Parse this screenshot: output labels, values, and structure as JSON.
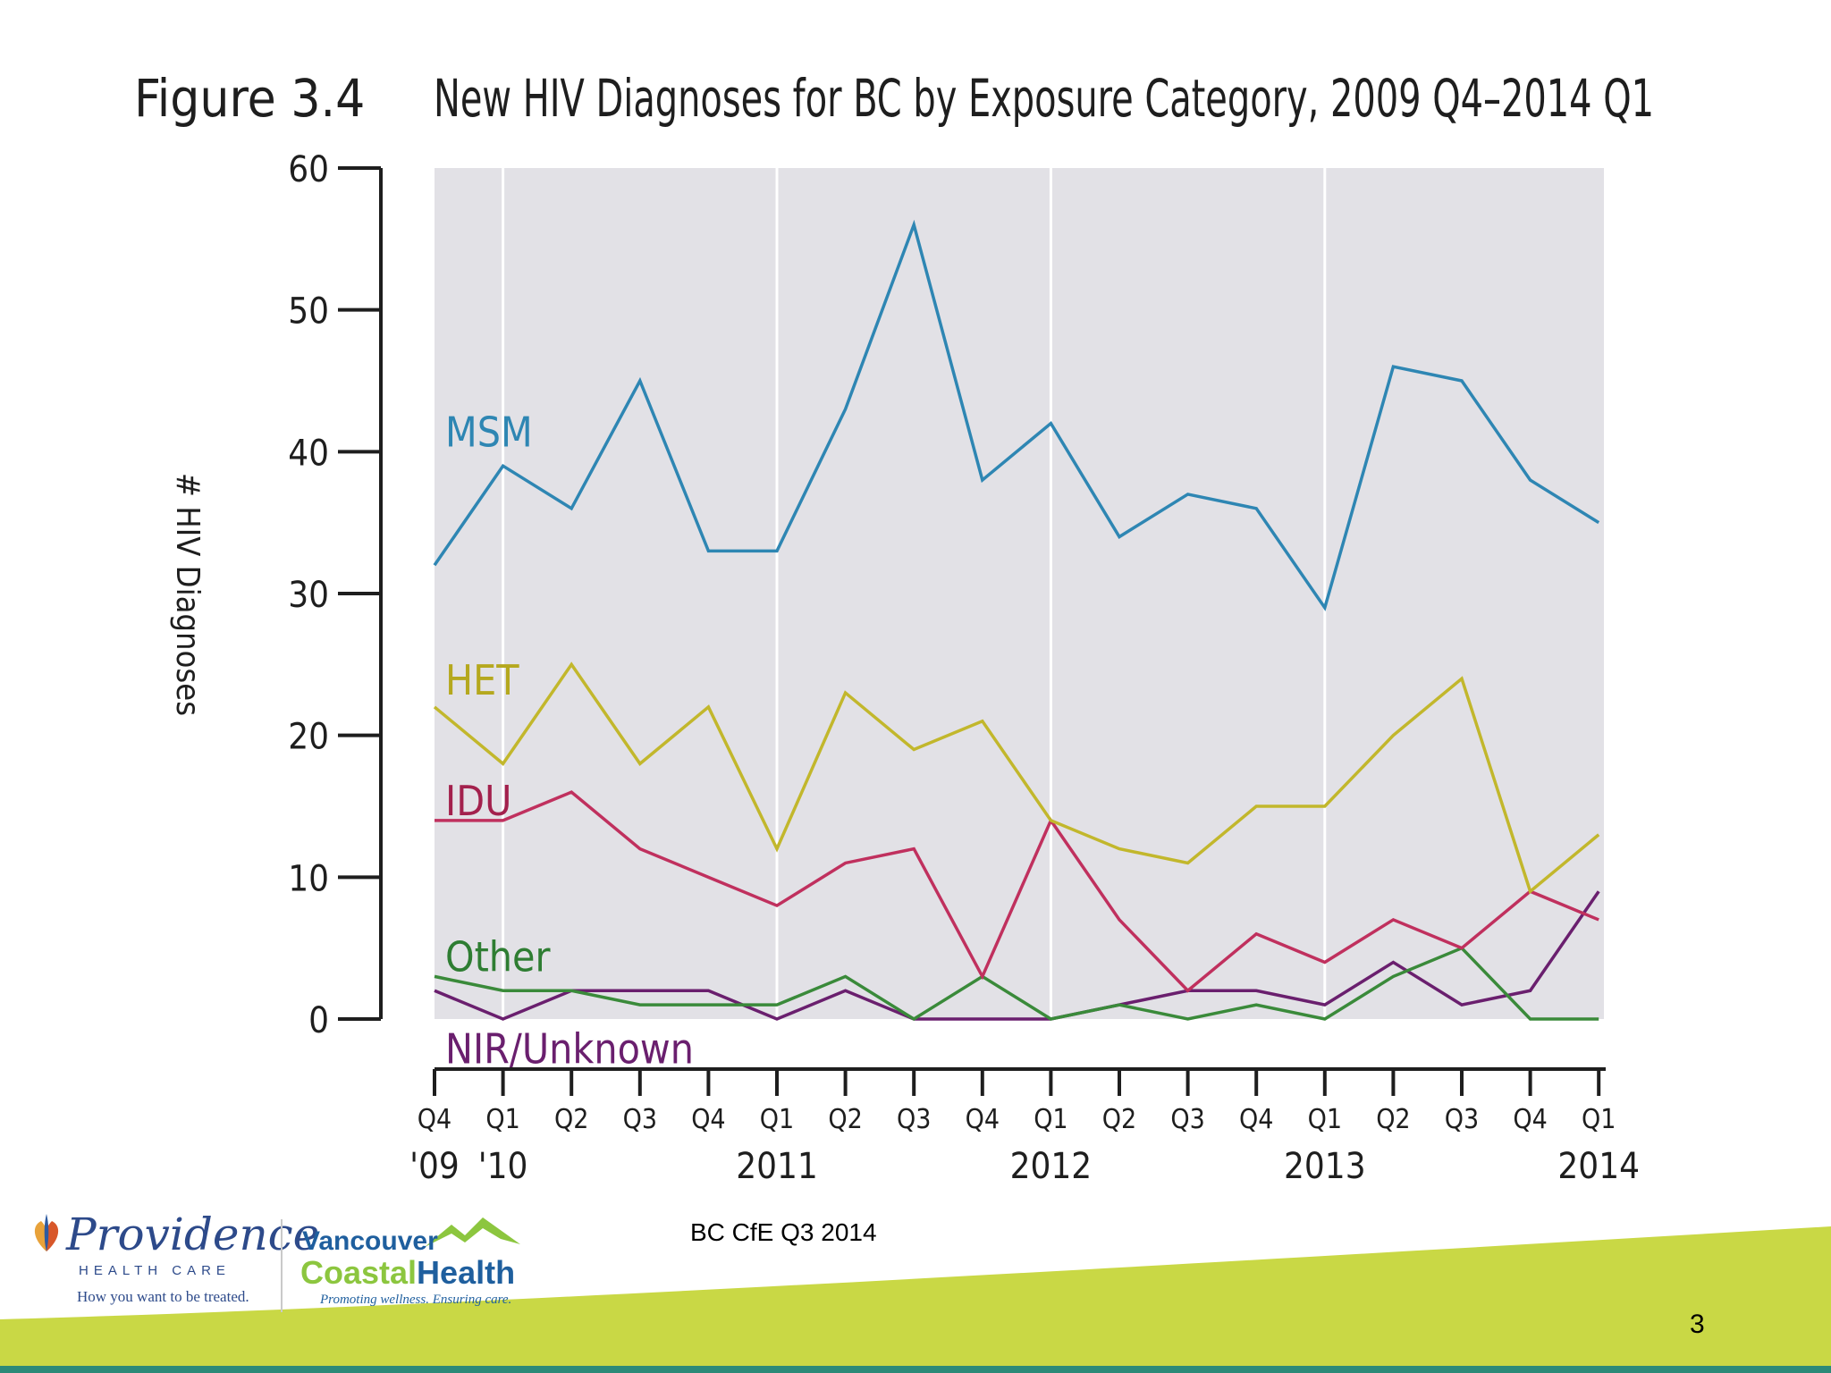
{
  "figure_number": "Figure 3.4",
  "source_note": "BC CfE Q3 2014",
  "page_number": "3",
  "colors": {
    "plot_background": "#e2e1e6",
    "axis": "#1e1e1e",
    "title": "#1e1e1e",
    "footer_band": "#c9d845",
    "footer_band_dark": "#2b8a78"
  },
  "logos": {
    "providence": {
      "name": "Providence",
      "subtitle": "HEALTH CARE",
      "tagline": "How you want to be treated."
    },
    "vch": {
      "line1": "Vancouver",
      "line2a": "Coastal",
      "line2b": "Health",
      "tagline": "Promoting wellness. Ensuring care."
    }
  },
  "chart_data": {
    "type": "line",
    "title": "New HIV Diagnoses for BC by Exposure Category, 2009 Q4–2014 Q1",
    "xlabel": "",
    "ylabel": "# HIV Diagnoses",
    "ylim": [
      0,
      60
    ],
    "yticks": [
      0,
      10,
      20,
      30,
      40,
      50,
      60
    ],
    "grid": "vertical lines at year boundaries",
    "x_quarters": [
      "Q4",
      "Q1",
      "Q2",
      "Q3",
      "Q4",
      "Q1",
      "Q2",
      "Q3",
      "Q4",
      "Q1",
      "Q2",
      "Q3",
      "Q4",
      "Q1",
      "Q2",
      "Q3",
      "Q4",
      "Q1"
    ],
    "year_labels": [
      {
        "index": 0,
        "text": "'09"
      },
      {
        "index": 1,
        "text": "'10"
      },
      {
        "index": 5,
        "text": "2011"
      },
      {
        "index": 9,
        "text": "2012"
      },
      {
        "index": 13,
        "text": "2013"
      },
      {
        "index": 17,
        "text": "2014"
      }
    ],
    "gridline_indices": [
      1,
      5,
      9,
      13
    ],
    "series": [
      {
        "name": "MSM",
        "color": "#2e86b3",
        "label_color": "#2e86b3",
        "label_value": 41.5,
        "values": [
          32,
          39,
          36,
          45,
          33,
          33,
          43,
          56,
          38,
          42,
          34,
          37,
          36,
          29,
          46,
          45,
          38,
          35
        ]
      },
      {
        "name": "HET",
        "color": "#c2b72c",
        "label_color": "#b5a81e",
        "label_value": 24,
        "values": [
          22,
          18,
          25,
          18,
          22,
          12,
          23,
          19,
          21,
          14,
          12,
          11,
          15,
          15,
          20,
          24,
          9,
          13
        ]
      },
      {
        "name": "IDU",
        "color": "#c0305e",
        "label_color": "#a3214d",
        "label_value": 15.5,
        "values": [
          14,
          14,
          16,
          12,
          10,
          8,
          11,
          12,
          3,
          14,
          7,
          2,
          6,
          4,
          7,
          5,
          9,
          7
        ]
      },
      {
        "name": "Other",
        "color": "#3a8a3a",
        "label_color": "#2e7d32",
        "label_value": 4.5,
        "values": [
          3,
          2,
          2,
          1,
          1,
          1,
          3,
          0,
          3,
          0,
          1,
          0,
          1,
          0,
          3,
          5,
          0,
          0
        ]
      },
      {
        "name": "NIR/Unknown",
        "color": "#6a1f6e",
        "label_color": "#6a1f6e",
        "label_value": -2,
        "values": [
          2,
          0,
          2,
          2,
          2,
          0,
          2,
          0,
          0,
          0,
          1,
          2,
          2,
          1,
          4,
          1,
          2,
          9
        ]
      }
    ]
  }
}
